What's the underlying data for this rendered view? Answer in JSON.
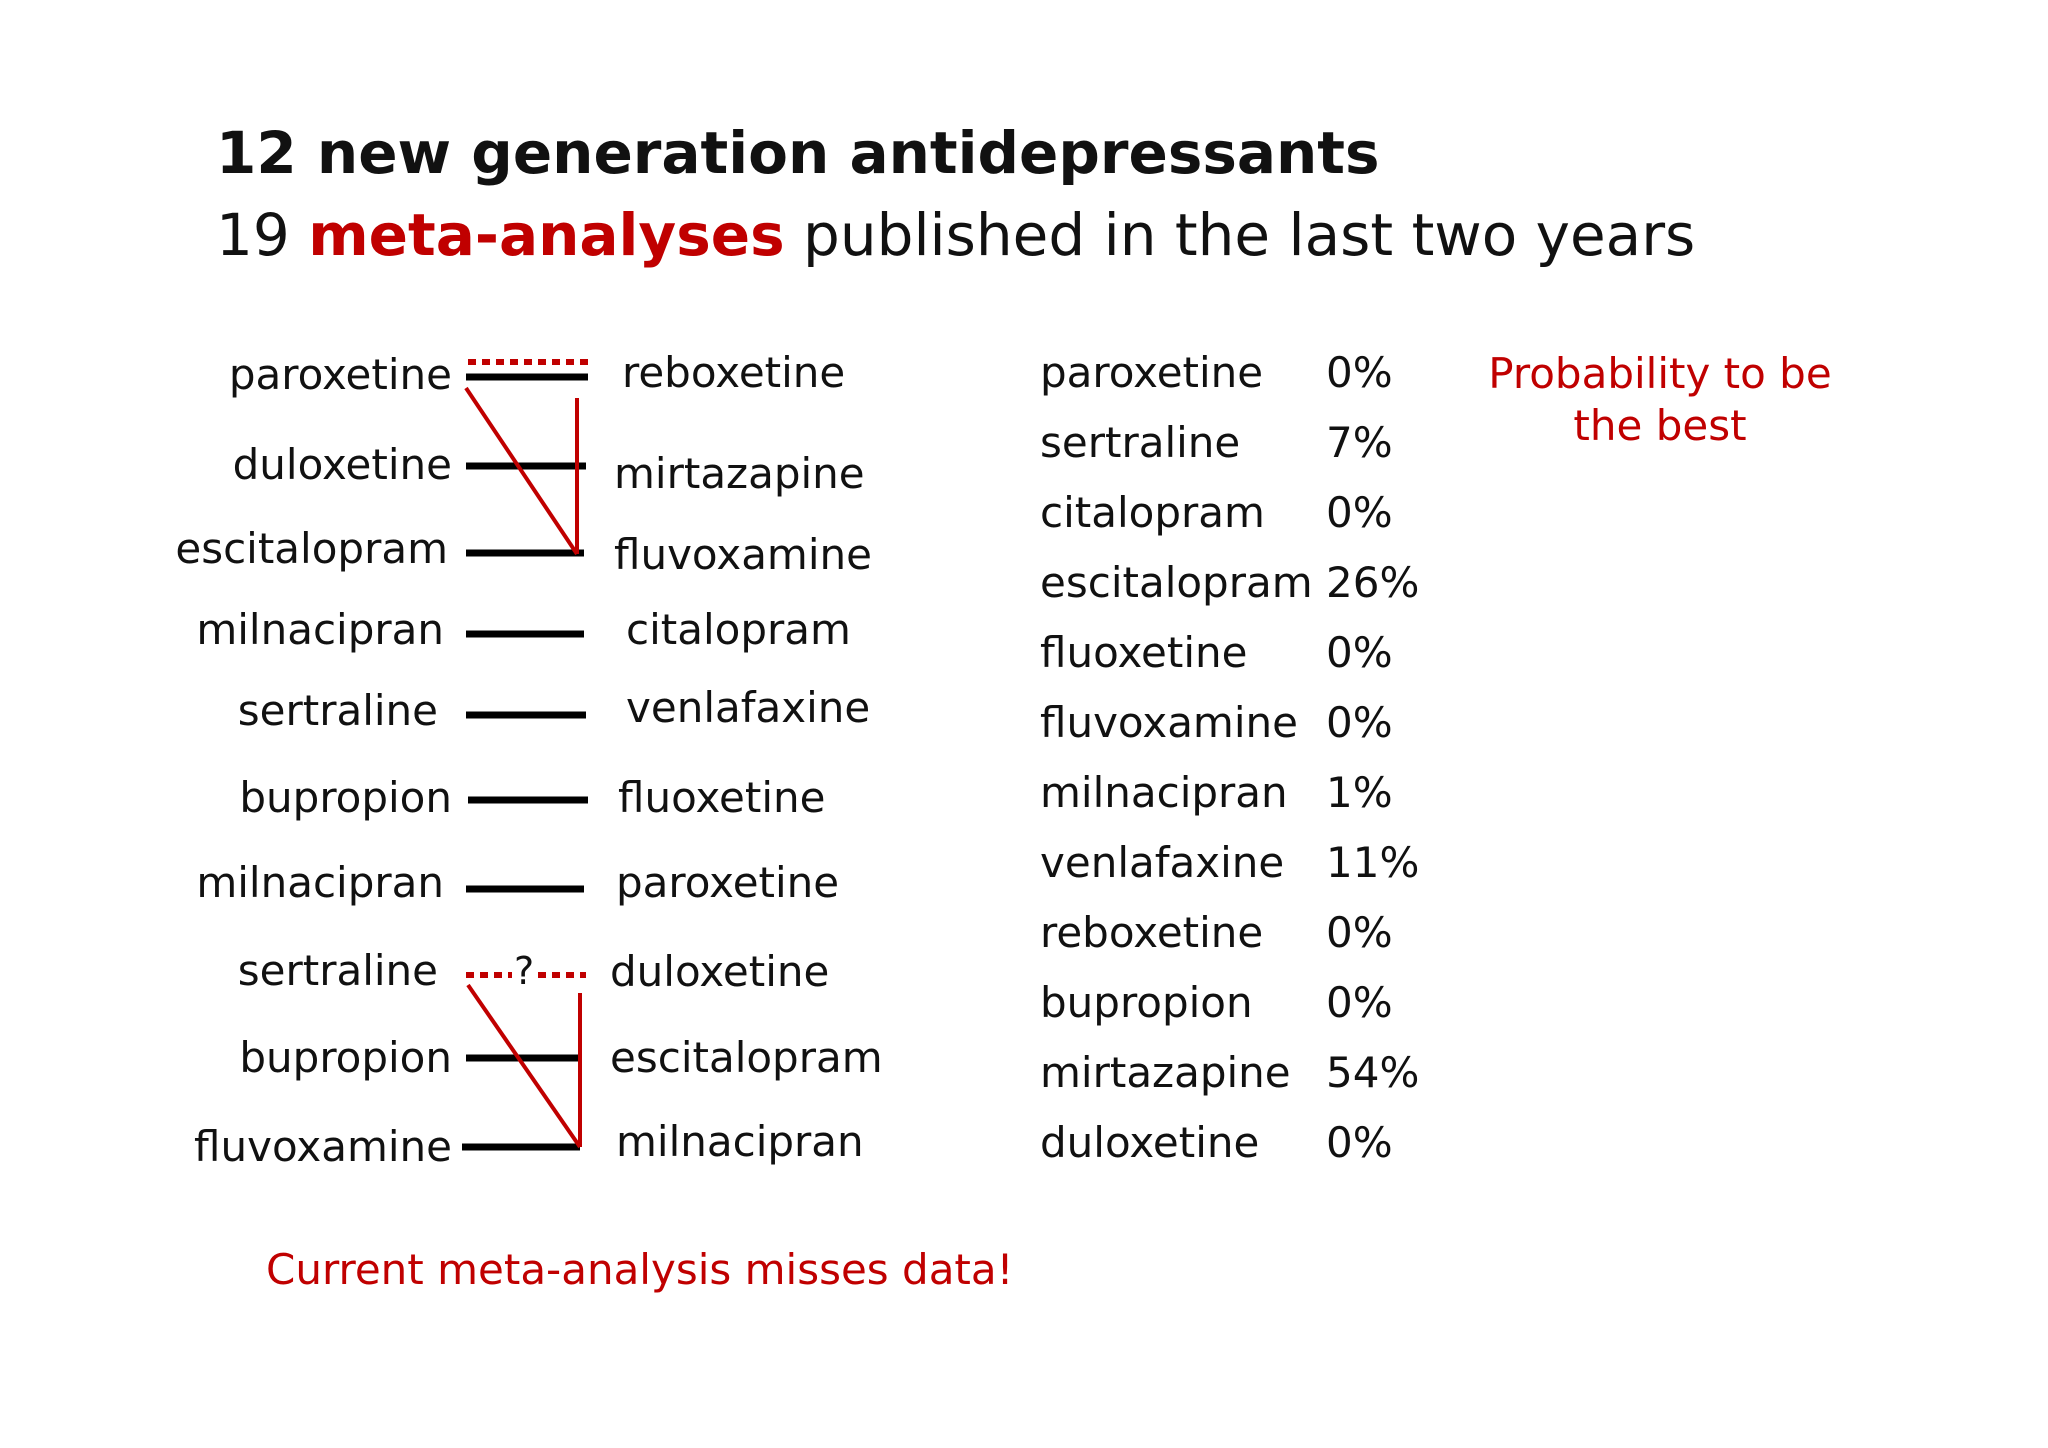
{
  "colors": {
    "accent": "#c00000",
    "text": "#111111",
    "background": "#ffffff"
  },
  "heading": {
    "title": "12 new generation antidepressants",
    "subtitle_prefix": "19 ",
    "subtitle_accent": "meta-analyses",
    "subtitle_suffix": " published in the last two years"
  },
  "comparisons": {
    "rows": [
      {
        "left": "paroxetine",
        "right": "reboxetine"
      },
      {
        "left": "duloxetine",
        "right": "mirtazapine"
      },
      {
        "left": "escitalopram",
        "right": "fluvoxamine"
      },
      {
        "left": "milnacipran",
        "right": "citalopram"
      },
      {
        "left": "sertraline",
        "right": "venlafaxine"
      },
      {
        "left": "bupropion",
        "right": "fluoxetine"
      },
      {
        "left": "milnacipran",
        "right": "paroxetine"
      },
      {
        "left": "sertraline",
        "right": "duloxetine"
      },
      {
        "left": "bupropion",
        "right": "escitalopram"
      },
      {
        "left": "fluvoxamine",
        "right": "milnacipran"
      }
    ],
    "question_mark": "?"
  },
  "probabilities": {
    "legend": [
      "Probability to be",
      "the best"
    ],
    "rows": [
      {
        "drug": "paroxetine",
        "pct": "0%"
      },
      {
        "drug": "sertraline",
        "pct": "7%"
      },
      {
        "drug": "citalopram",
        "pct": "0%"
      },
      {
        "drug": "escitalopram",
        "pct": "26%"
      },
      {
        "drug": "fluoxetine",
        "pct": "0%"
      },
      {
        "drug": "fluvoxamine",
        "pct": "0%"
      },
      {
        "drug": "milnacipran",
        "pct": "1%"
      },
      {
        "drug": "venlafaxine",
        "pct": "11%"
      },
      {
        "drug": "reboxetine",
        "pct": "0%"
      },
      {
        "drug": "bupropion",
        "pct": "0%"
      },
      {
        "drug": "mirtazapine",
        "pct": "54%"
      },
      {
        "drug": "duloxetine",
        "pct": "0%"
      }
    ]
  },
  "note": "Current meta-analysis misses data!"
}
